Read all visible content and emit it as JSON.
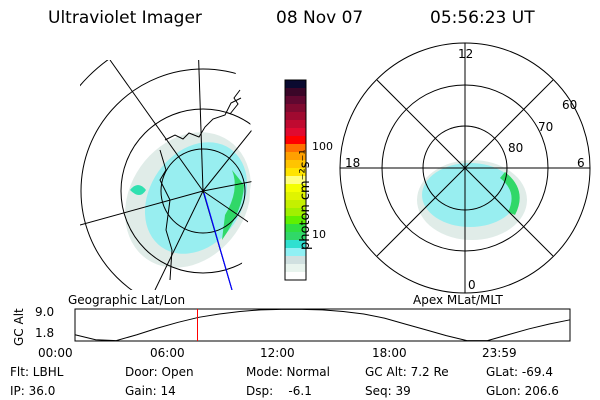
{
  "header": {
    "title": "Ultraviolet Imager",
    "date": "08 Nov 07",
    "time": "05:56:23 UT"
  },
  "colorbar": {
    "label": "photon cm⁻²s⁻¹",
    "ticks": [
      "100",
      "10"
    ],
    "colors": [
      "#0a0a30",
      "#3a0628",
      "#600830",
      "#800a30",
      "#a00a30",
      "#c00a30",
      "#e00a30",
      "#ff0000",
      "#ff7000",
      "#ffa000",
      "#ffc400",
      "#ffe400",
      "#ffff80",
      "#f4ff00",
      "#e0f400",
      "#c4f000",
      "#a0f000",
      "#60f000",
      "#30e040",
      "#30d868",
      "#30e0d0",
      "#90f0f4",
      "#d0e0e0",
      "#e8f4ee",
      "#ffffff"
    ]
  },
  "left_panel": {
    "label": "Geographic Lat/Lon"
  },
  "right_panel": {
    "label": "Apex MLat/MLT",
    "mlt_labels": [
      "12",
      "18",
      "6",
      "0"
    ],
    "lat_labels": [
      "60",
      "70",
      "80"
    ]
  },
  "chart_data": {
    "type": "line",
    "ylabel": "GC Alt",
    "ytick_labels": [
      "9.0",
      "1.8"
    ],
    "xtick_labels": [
      "00:00",
      "06:00",
      "12:00",
      "18:00",
      "23:59"
    ],
    "x_hours": [
      0,
      1,
      2,
      3,
      4,
      5,
      6,
      7,
      8,
      9,
      10,
      11,
      12,
      13,
      14,
      15,
      16,
      17,
      18,
      19,
      20,
      21,
      22,
      23,
      24
    ],
    "y_re": [
      3.0,
      1.8,
      1.6,
      3.0,
      4.6,
      6.0,
      7.2,
      8.0,
      8.6,
      9.0,
      9.1,
      9.1,
      9.0,
      8.6,
      8.0,
      7.0,
      5.6,
      4.2,
      2.8,
      1.6,
      1.6,
      3.0,
      4.4,
      5.6,
      6.6
    ],
    "current_time_hours": 5.94
  },
  "info": [
    [
      "Flt: LBHL",
      "IP: 36.0"
    ],
    [
      "Door: Open",
      "Gain: 14"
    ],
    [
      "Mode: Normal",
      "Dsp:    -6.1"
    ],
    [
      "GC Alt: 7.2 Re",
      "Seq: 39"
    ],
    [
      "GLat: -69.4",
      "GLon: 206.6"
    ]
  ]
}
